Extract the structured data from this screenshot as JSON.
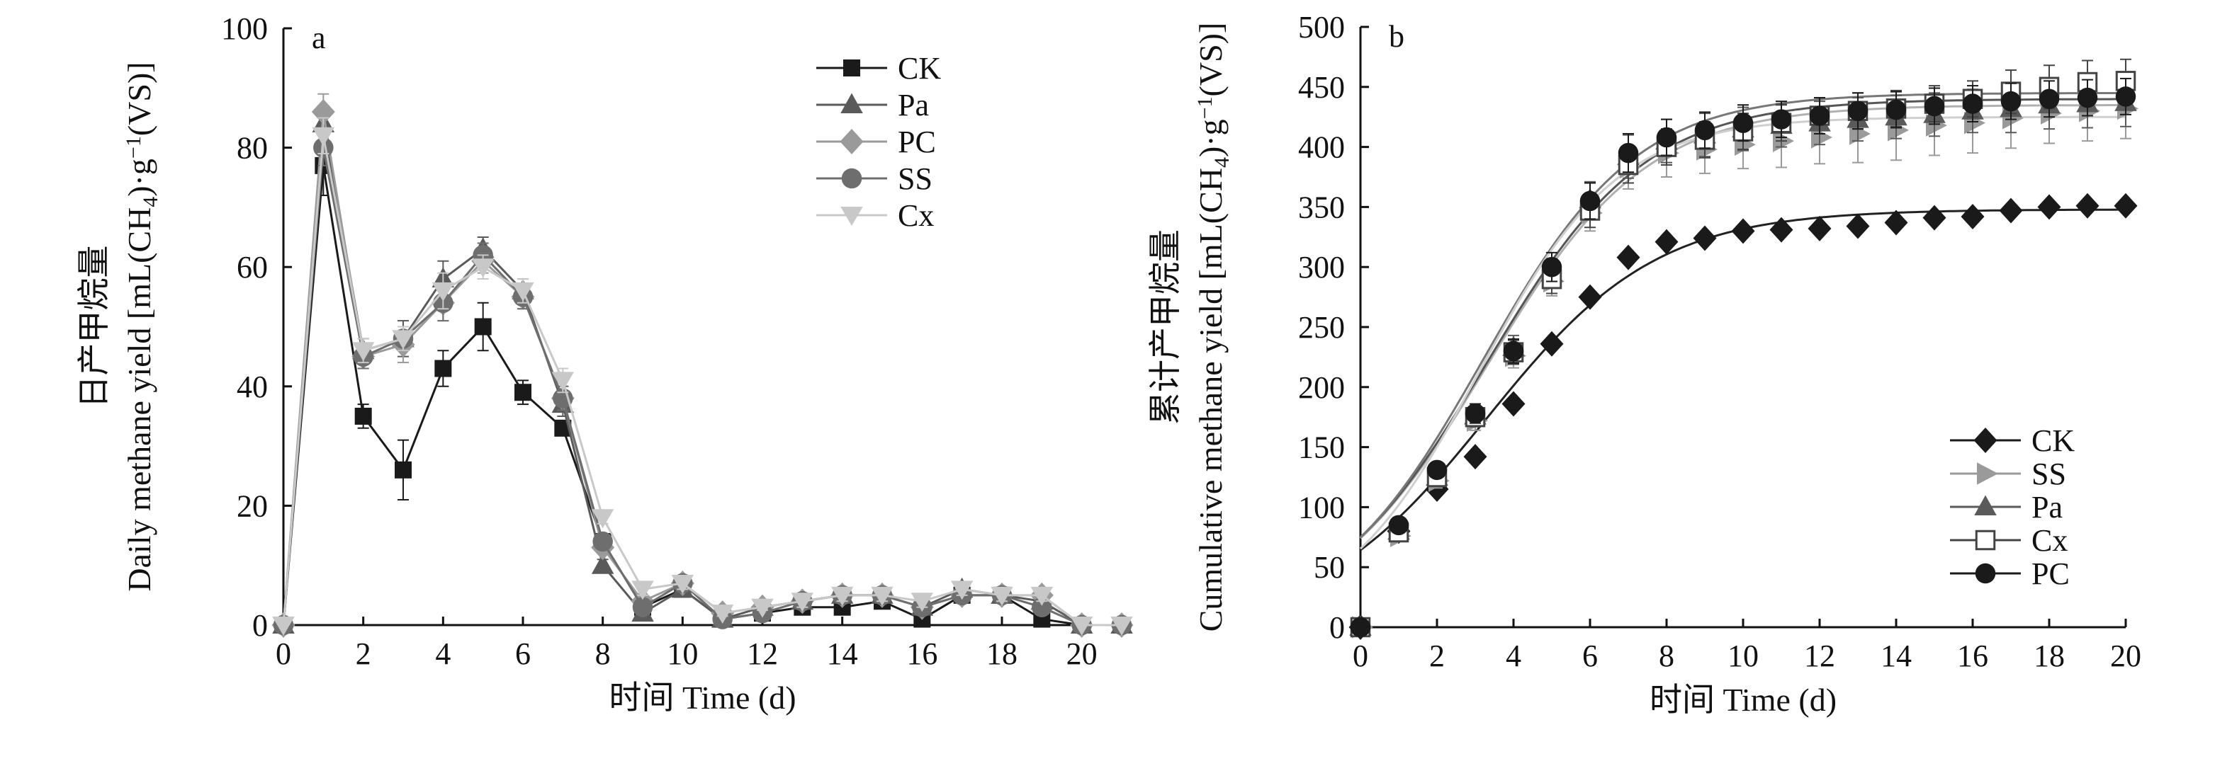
{
  "chart_data": [
    {
      "type": "line",
      "panel_label": "a",
      "xlabel": "时间 Time (d)",
      "ylabel_cn": "日产甲烷量",
      "ylabel_en_parts": [
        "Daily methane yield [mL(CH",
        "4",
        ")·g",
        "−1",
        "(VS)]"
      ],
      "xlim": [
        0,
        21
      ],
      "ylim": [
        0,
        100
      ],
      "xticks": [
        0,
        2,
        4,
        6,
        8,
        10,
        12,
        14,
        16,
        18,
        20
      ],
      "yticks": [
        0,
        20,
        40,
        60,
        80,
        100
      ],
      "grid": false,
      "legend_position": "top-right",
      "series": [
        {
          "name": "CK",
          "marker": "square",
          "color": "#1a1a1a",
          "x": [
            0,
            1,
            2,
            3,
            4,
            5,
            6,
            7,
            8,
            9,
            10,
            11,
            12,
            13,
            14,
            15,
            16,
            17,
            18,
            19,
            20,
            21
          ],
          "y": [
            0,
            77,
            35,
            26,
            43,
            50,
            39,
            33,
            14,
            3,
            6,
            1,
            2,
            3,
            3,
            4,
            1,
            5,
            5,
            1,
            0,
            0
          ],
          "err": [
            0,
            5,
            2,
            5,
            3,
            4,
            2,
            1,
            1,
            1,
            1,
            0.5,
            0.5,
            0.5,
            0.5,
            0.5,
            0.5,
            1,
            1,
            0.5,
            0,
            0
          ]
        },
        {
          "name": "Pa",
          "marker": "triangle",
          "color": "#5a5a5a",
          "x": [
            0,
            1,
            2,
            3,
            4,
            5,
            6,
            7,
            8,
            9,
            10,
            11,
            12,
            13,
            14,
            15,
            16,
            17,
            18,
            19,
            20,
            21
          ],
          "y": [
            0,
            84,
            46,
            48,
            58,
            63,
            56,
            37,
            10,
            2,
            6,
            1,
            3,
            4,
            5,
            5,
            3,
            6,
            5,
            4,
            0,
            0
          ],
          "err": [
            0,
            3,
            2,
            3,
            3,
            2,
            2,
            2,
            1,
            1,
            1,
            0.5,
            0.5,
            1,
            1,
            1,
            1,
            1,
            1,
            1,
            0,
            0
          ]
        },
        {
          "name": "PC",
          "marker": "diamond",
          "color": "#9a9a9a",
          "x": [
            0,
            1,
            2,
            3,
            4,
            5,
            6,
            7,
            8,
            9,
            10,
            11,
            12,
            13,
            14,
            15,
            16,
            17,
            18,
            19,
            20,
            21
          ],
          "y": [
            0,
            86,
            45,
            47,
            54,
            61,
            55,
            38,
            13,
            4,
            7,
            2,
            3,
            4,
            5,
            5,
            3,
            5,
            5,
            5,
            0,
            0
          ],
          "err": [
            0,
            3,
            2,
            3,
            3,
            2,
            2,
            2,
            1,
            1,
            1,
            0.5,
            0.5,
            1,
            1,
            1,
            1,
            1,
            1,
            1,
            0,
            0
          ]
        },
        {
          "name": "SS",
          "marker": "circle",
          "color": "#6e6e6e",
          "x": [
            0,
            1,
            2,
            3,
            4,
            5,
            6,
            7,
            8,
            9,
            10,
            11,
            12,
            13,
            14,
            15,
            16,
            17,
            18,
            19,
            20,
            21
          ],
          "y": [
            0,
            80,
            45,
            48,
            54,
            62,
            55,
            38,
            14,
            3,
            7,
            1,
            2,
            4,
            5,
            5,
            3,
            5,
            5,
            3,
            0,
            0
          ],
          "err": [
            0,
            3,
            2,
            2,
            3,
            2,
            2,
            2,
            1,
            1,
            1,
            0.5,
            0.5,
            1,
            1,
            1,
            1,
            1,
            1,
            1,
            0,
            0
          ]
        },
        {
          "name": "Cx",
          "marker": "triangle-down",
          "color": "#c8c8c8",
          "x": [
            0,
            1,
            2,
            3,
            4,
            5,
            6,
            7,
            8,
            9,
            10,
            11,
            12,
            13,
            14,
            15,
            16,
            17,
            18,
            19,
            20,
            21
          ],
          "y": [
            0,
            82,
            46,
            48,
            56,
            60,
            56,
            41,
            18,
            6,
            7,
            2,
            3,
            4,
            5,
            5,
            4,
            6,
            5,
            5,
            0,
            0
          ],
          "err": [
            0,
            3,
            2,
            2,
            3,
            2,
            2,
            2,
            1,
            1,
            1,
            0.5,
            0.5,
            1,
            1,
            1,
            1,
            1,
            1,
            1,
            0,
            0
          ]
        }
      ]
    },
    {
      "type": "scatter",
      "panel_label": "b",
      "xlabel": "时间 Time (d)",
      "ylabel_cn": "累计产甲烷量",
      "ylabel_en_parts": [
        "Cumulative methane yield [mL(CH",
        "4",
        ")·g",
        "−1",
        "(VS)]"
      ],
      "xlim": [
        0,
        20
      ],
      "ylim": [
        0,
        500
      ],
      "xticks": [
        0,
        2,
        4,
        6,
        8,
        10,
        12,
        14,
        16,
        18,
        20
      ],
      "yticks": [
        0,
        50,
        100,
        150,
        200,
        250,
        300,
        350,
        400,
        450,
        500
      ],
      "grid": false,
      "legend_position": "bottom-right",
      "fit_curves": [
        {
          "of": "CK",
          "asymptote": 348,
          "rate": 0.45,
          "midpoint": 3.3,
          "color": "#222222"
        },
        {
          "of": "SS",
          "asymptote": 435,
          "rate": 0.48,
          "midpoint": 3.3,
          "color": "#b0b0b0"
        },
        {
          "of": "Pa",
          "asymptote": 440,
          "rate": 0.48,
          "midpoint": 3.3,
          "color": "#555555"
        },
        {
          "of": "Cx",
          "asymptote": 445,
          "rate": 0.5,
          "midpoint": 3.2,
          "color": "#777777"
        },
        {
          "of": "PC",
          "asymptote": 425,
          "rate": 0.55,
          "midpoint": 3.1,
          "color": "#cfcfcf"
        }
      ],
      "series": [
        {
          "name": "CK",
          "marker": "diamond",
          "color": "#1a1a1a",
          "x": [
            0,
            1,
            2,
            3,
            4,
            5,
            6,
            7,
            8,
            9,
            10,
            11,
            12,
            13,
            14,
            15,
            16,
            17,
            18,
            19,
            20
          ],
          "y": [
            0,
            80,
            115,
            142,
            186,
            236,
            275,
            308,
            321,
            324,
            330,
            331,
            332,
            334,
            337,
            341,
            342,
            347,
            350,
            351,
            351
          ],
          "err": [
            0,
            3,
            4,
            4,
            4,
            4,
            4,
            4,
            4,
            4,
            4,
            4,
            4,
            4,
            4,
            4,
            4,
            4,
            4,
            4,
            4
          ]
        },
        {
          "name": "SS",
          "marker": "triangle-right",
          "color": "#9a9a9a",
          "x": [
            0,
            1,
            2,
            3,
            4,
            5,
            6,
            7,
            8,
            9,
            10,
            11,
            12,
            13,
            14,
            15,
            16,
            17,
            18,
            19,
            20
          ],
          "y": [
            0,
            76,
            122,
            172,
            226,
            288,
            345,
            383,
            395,
            398,
            402,
            405,
            408,
            411,
            414,
            418,
            420,
            424,
            428,
            430,
            432
          ],
          "err": [
            0,
            4,
            6,
            8,
            10,
            12,
            15,
            18,
            20,
            20,
            20,
            22,
            22,
            24,
            25,
            25,
            25,
            25,
            25,
            25,
            25
          ]
        },
        {
          "name": "Pa",
          "marker": "triangle",
          "color": "#5a5a5a",
          "x": [
            0,
            1,
            2,
            3,
            4,
            5,
            6,
            7,
            8,
            9,
            10,
            11,
            12,
            13,
            14,
            15,
            16,
            17,
            18,
            19,
            20
          ],
          "y": [
            0,
            80,
            125,
            176,
            233,
            295,
            356,
            392,
            405,
            410,
            415,
            418,
            420,
            423,
            425,
            427,
            430,
            432,
            435,
            436,
            437
          ],
          "err": [
            0,
            4,
            6,
            8,
            10,
            12,
            15,
            18,
            18,
            18,
            18,
            18,
            18,
            18,
            18,
            18,
            18,
            20,
            20,
            20,
            20
          ]
        },
        {
          "name": "Cx",
          "marker": "square-open",
          "color": "#444444",
          "x": [
            0,
            1,
            2,
            3,
            4,
            5,
            6,
            7,
            8,
            9,
            10,
            11,
            12,
            13,
            14,
            15,
            16,
            17,
            18,
            19,
            20
          ],
          "y": [
            0,
            79,
            125,
            175,
            229,
            290,
            347,
            385,
            400,
            406,
            413,
            420,
            426,
            430,
            432,
            436,
            440,
            446,
            450,
            454,
            455
          ],
          "err": [
            0,
            4,
            6,
            8,
            10,
            12,
            14,
            15,
            15,
            15,
            15,
            15,
            15,
            15,
            15,
            15,
            15,
            18,
            18,
            18,
            18
          ]
        },
        {
          "name": "PC",
          "marker": "circle",
          "color": "#1a1a1a",
          "x": [
            0,
            1,
            2,
            3,
            4,
            5,
            6,
            7,
            8,
            9,
            10,
            11,
            12,
            13,
            14,
            15,
            16,
            17,
            18,
            19,
            20
          ],
          "y": [
            0,
            85,
            131,
            178,
            230,
            300,
            355,
            395,
            408,
            414,
            420,
            423,
            426,
            430,
            431,
            434,
            436,
            438,
            440,
            441,
            442
          ],
          "err": [
            0,
            4,
            6,
            8,
            10,
            12,
            15,
            16,
            15,
            15,
            15,
            15,
            15,
            15,
            15,
            15,
            15,
            15,
            15,
            15,
            15
          ]
        }
      ]
    }
  ]
}
